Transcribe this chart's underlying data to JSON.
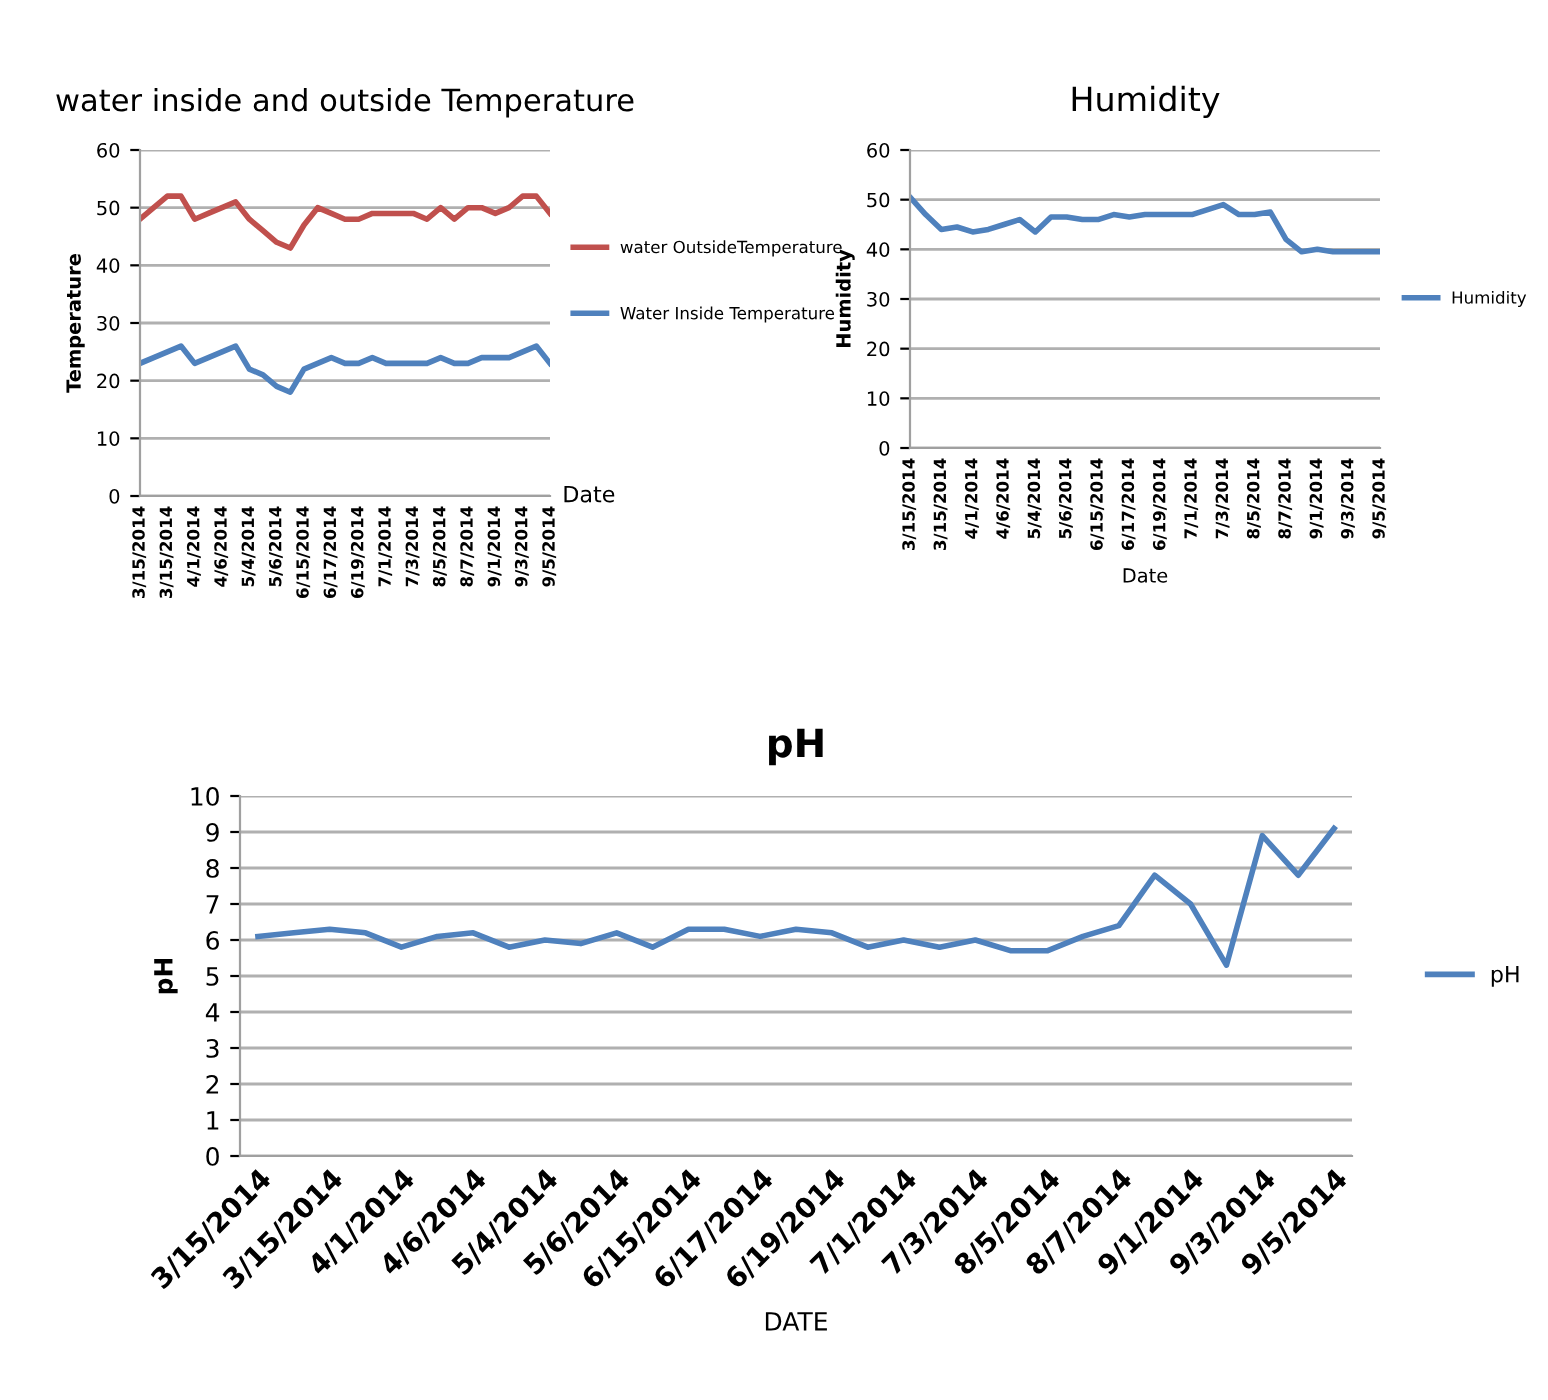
{
  "chart_data": [
    {
      "type": "line",
      "title": "water inside and outside Temperature",
      "xlabel": "Date",
      "ylabel": "Temperature",
      "categories": [
        "3/15/2014",
        null,
        "3/15/2014",
        null,
        "4/1/2014",
        null,
        "4/6/2014",
        null,
        "5/4/2014",
        null,
        "5/6/2014",
        null,
        "6/15/2014",
        null,
        "6/17/2014",
        null,
        "6/19/2014",
        null,
        "7/1/2014",
        null,
        "7/3/2014",
        null,
        "8/5/2014",
        null,
        "8/7/2014",
        null,
        "9/1/2014",
        null,
        "9/3/2014",
        null,
        "9/5/2014"
      ],
      "series": [
        {
          "name": "water OutsideTemperature",
          "color": "#c0504d",
          "values": [
            48,
            50,
            52,
            52,
            48,
            49,
            50,
            51,
            48,
            46,
            44,
            43,
            47,
            50,
            49,
            48,
            48,
            49,
            49,
            49,
            49,
            48,
            50,
            48,
            50,
            50,
            49,
            50,
            52,
            52,
            49
          ]
        },
        {
          "name": "Water Inside Temperature",
          "color": "#4f81bd",
          "values": [
            23,
            24,
            25,
            26,
            23,
            24,
            25,
            26,
            22,
            21,
            19,
            18,
            22,
            23,
            24,
            23,
            23,
            24,
            23,
            23,
            23,
            23,
            24,
            23,
            23,
            24,
            24,
            24,
            25,
            26,
            23
          ]
        }
      ],
      "ylim": [
        0,
        60
      ],
      "yticks": [
        0,
        10,
        20,
        30,
        40,
        50,
        60
      ],
      "grid": "y",
      "legend": "right"
    },
    {
      "type": "line",
      "title": "Humidity",
      "xlabel": "Date",
      "ylabel": "Humidity",
      "categories": [
        "3/15/2014",
        null,
        "3/15/2014",
        null,
        "4/1/2014",
        null,
        "4/6/2014",
        null,
        "5/4/2014",
        null,
        "5/6/2014",
        null,
        "6/15/2014",
        null,
        "6/17/2014",
        null,
        "6/19/2014",
        null,
        "7/1/2014",
        null,
        "7/3/2014",
        null,
        "8/5/2014",
        null,
        "8/7/2014",
        null,
        "9/1/2014",
        null,
        "9/3/2014",
        null,
        "9/5/2014"
      ],
      "series": [
        {
          "name": "Humidity",
          "color": "#4f81bd",
          "values": [
            50.5,
            47,
            44,
            44.5,
            43.5,
            44,
            45,
            46,
            43.5,
            46.5,
            46.5,
            46,
            46,
            47,
            46.5,
            47,
            47,
            47,
            47,
            48,
            49,
            47,
            47,
            47.5,
            42,
            39.5,
            40,
            39.5,
            39.5,
            39.5,
            39.5
          ]
        }
      ],
      "ylim": [
        0,
        60
      ],
      "yticks": [
        0,
        10,
        20,
        30,
        40,
        50,
        60
      ],
      "grid": "y",
      "legend": "right"
    },
    {
      "type": "line",
      "title": "pH",
      "xlabel": "DATE",
      "ylabel": "pH",
      "categories": [
        "3/15/2014",
        null,
        "3/15/2014",
        null,
        "4/1/2014",
        null,
        "4/6/2014",
        null,
        "5/4/2014",
        null,
        "5/6/2014",
        null,
        "6/15/2014",
        null,
        "6/17/2014",
        null,
        "6/19/2014",
        null,
        "7/1/2014",
        null,
        "7/3/2014",
        null,
        "8/5/2014",
        null,
        "8/7/2014",
        null,
        "9/1/2014",
        null,
        "9/3/2014",
        null,
        "9/5/2014"
      ],
      "series": [
        {
          "name": "pH",
          "color": "#4f81bd",
          "values": [
            6.1,
            6.2,
            6.3,
            6.2,
            5.8,
            6.1,
            6.2,
            5.8,
            6.0,
            5.9,
            6.2,
            5.8,
            6.3,
            6.3,
            6.1,
            6.3,
            6.2,
            5.8,
            6.0,
            5.8,
            6.0,
            5.7,
            5.7,
            6.1,
            6.4,
            7.8,
            7.0,
            5.3,
            8.9,
            7.8,
            9.1
          ]
        }
      ],
      "ylim": [
        0,
        10
      ],
      "yticks": [
        0,
        1,
        2,
        3,
        4,
        5,
        6,
        7,
        8,
        9,
        10
      ],
      "grid": "y",
      "legend": "right"
    }
  ]
}
